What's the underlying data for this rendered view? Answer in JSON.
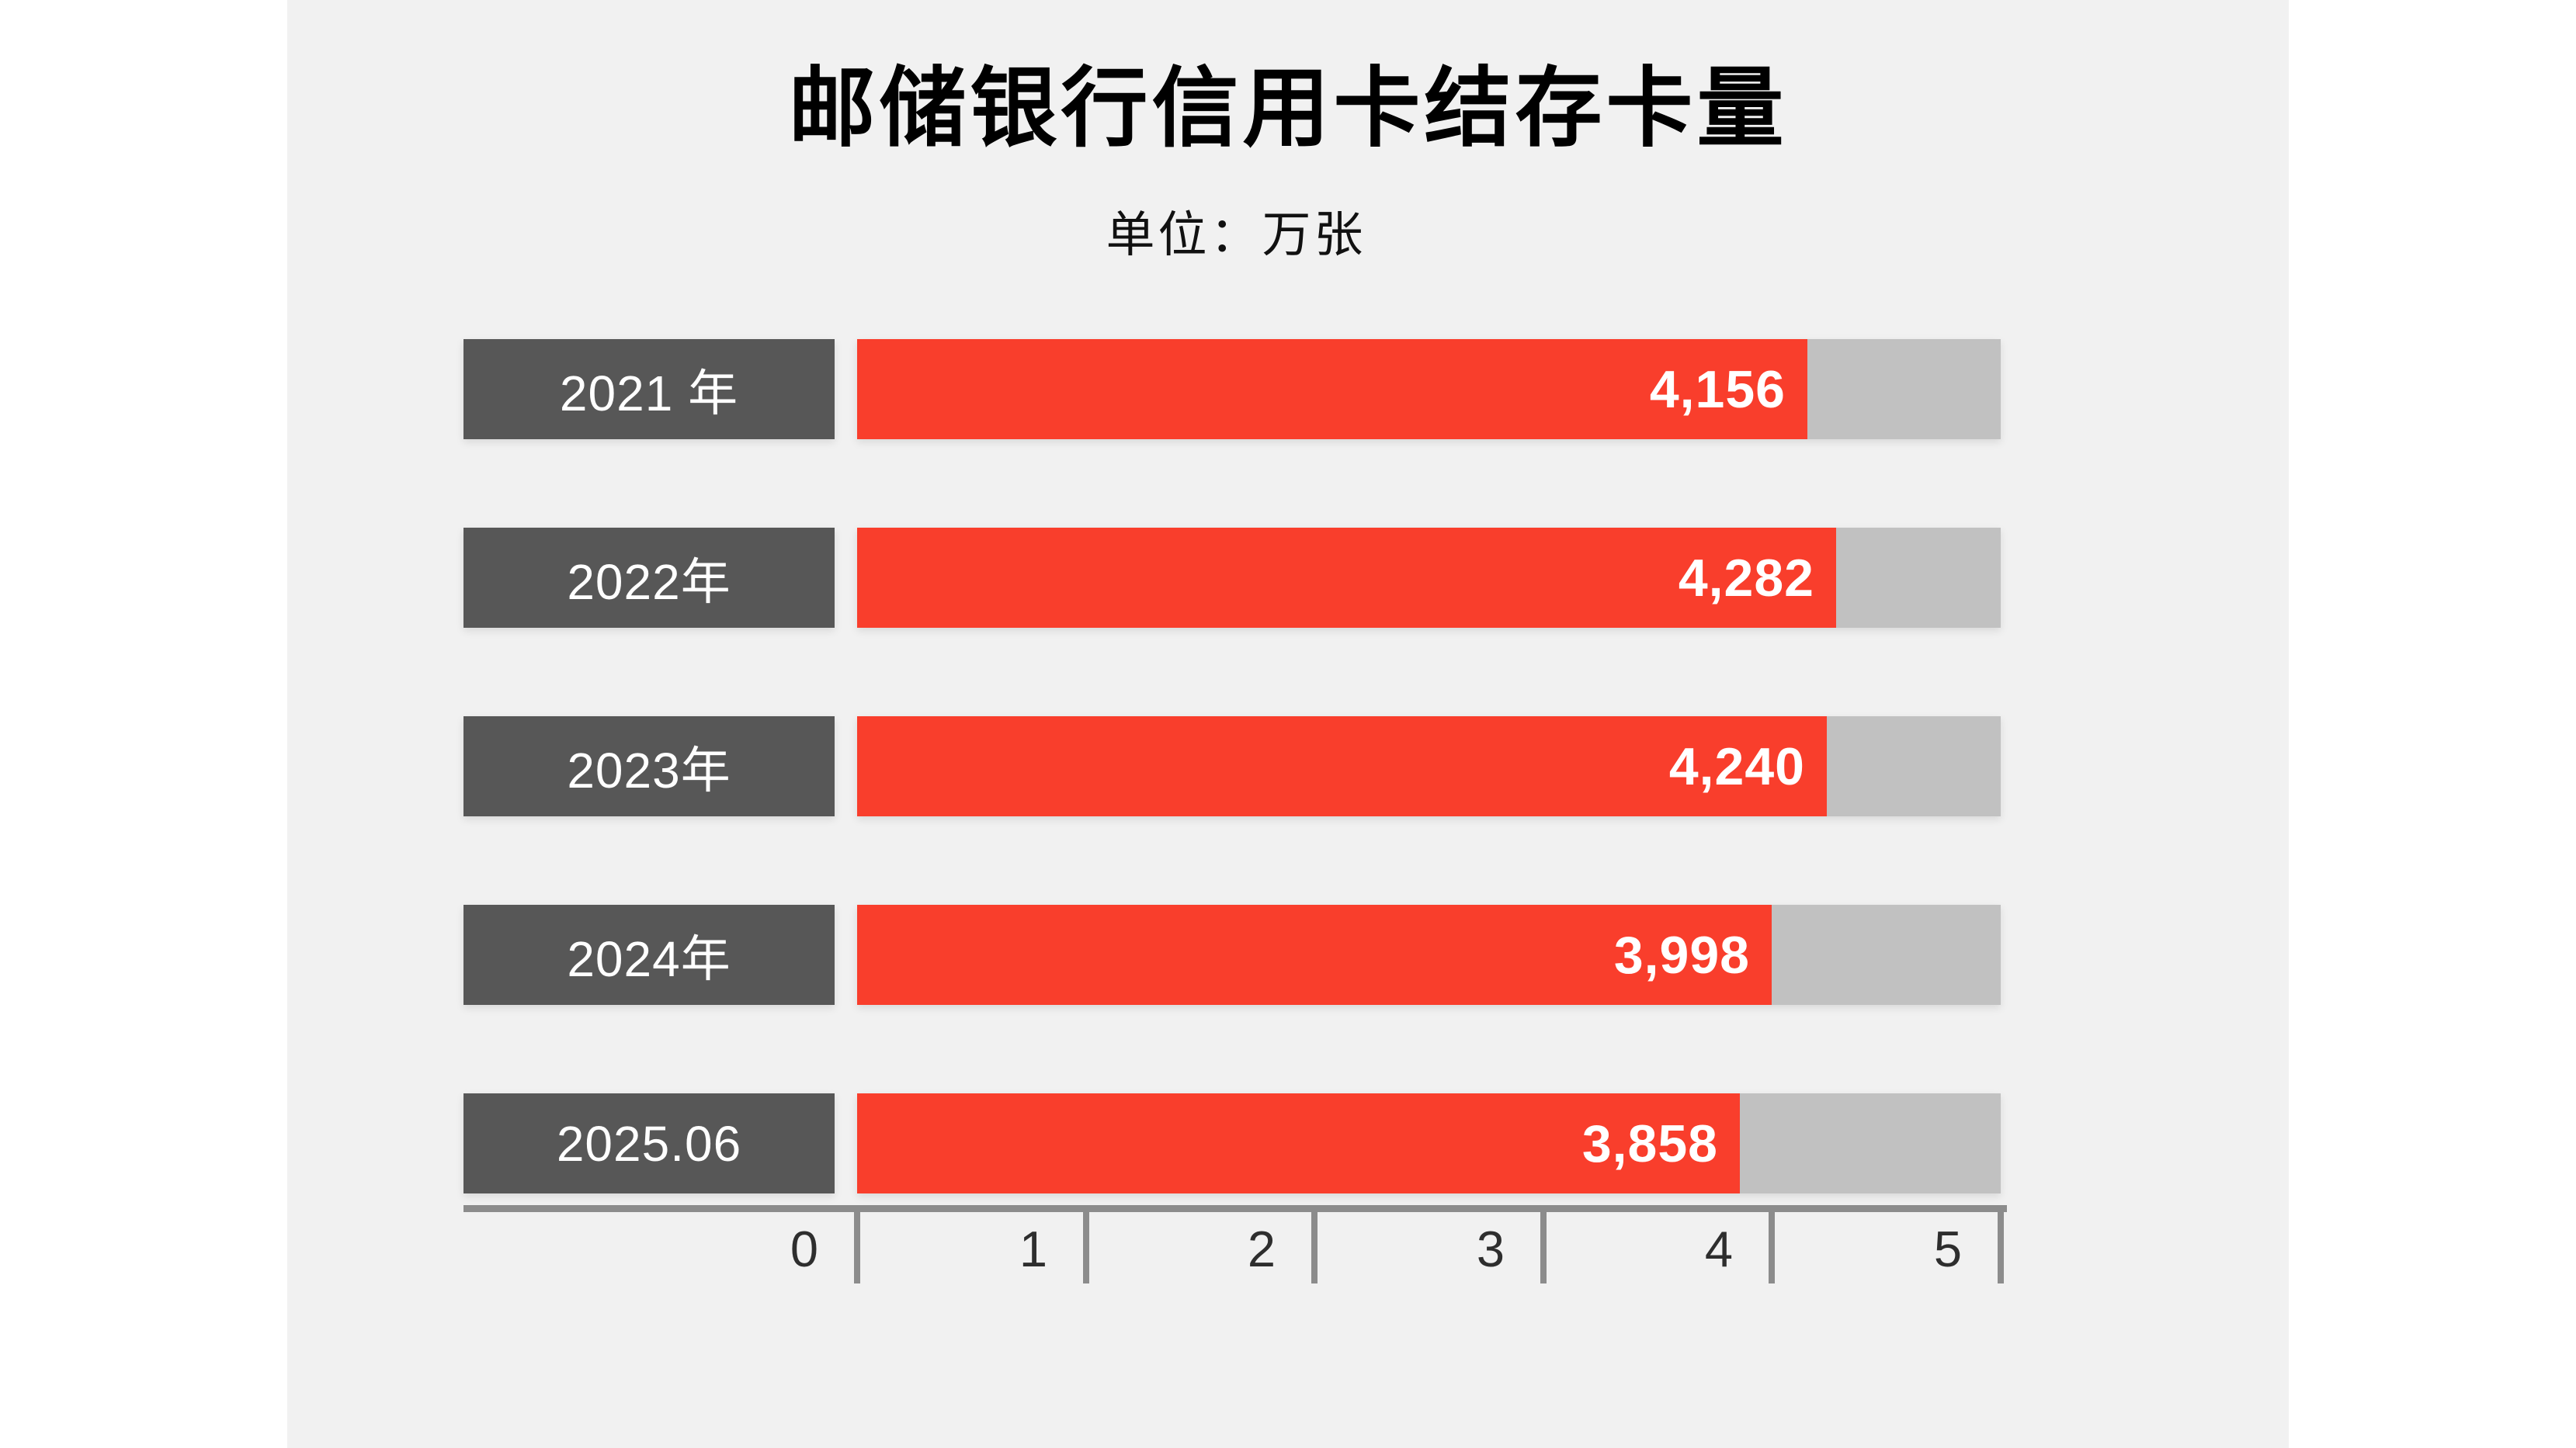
{
  "page": {
    "background": "#ffffff",
    "panel_background": "#f1f1f1"
  },
  "chart_data": {
    "type": "bar",
    "orientation": "horizontal",
    "title": "邮储银行信用卡结存卡量",
    "subtitle": "单位：万张",
    "categories": [
      "2021 年",
      "2022年",
      "2023年",
      "2024年",
      "2025.06"
    ],
    "values": [
      4156,
      4282,
      4240,
      3998,
      3858
    ],
    "value_labels": [
      "4,156",
      "4,282",
      "4,240",
      "3,998",
      "3,858"
    ],
    "unit": "万张",
    "xlim": [
      0,
      5000
    ],
    "x_tick_labels": [
      "0",
      "1",
      "2",
      "3",
      "4",
      "5"
    ],
    "x_tick_step_value": 1000,
    "grid": false,
    "legend": "none",
    "colors": {
      "bar_fill": "#f93e2c",
      "bar_track": "#c1c1c1",
      "category_box": "#575757",
      "category_text": "#ffffff",
      "value_text": "#ffffff",
      "axis": "#8c8c8c",
      "tick_label": "#2e2e2e",
      "title_text": "#000000"
    }
  }
}
